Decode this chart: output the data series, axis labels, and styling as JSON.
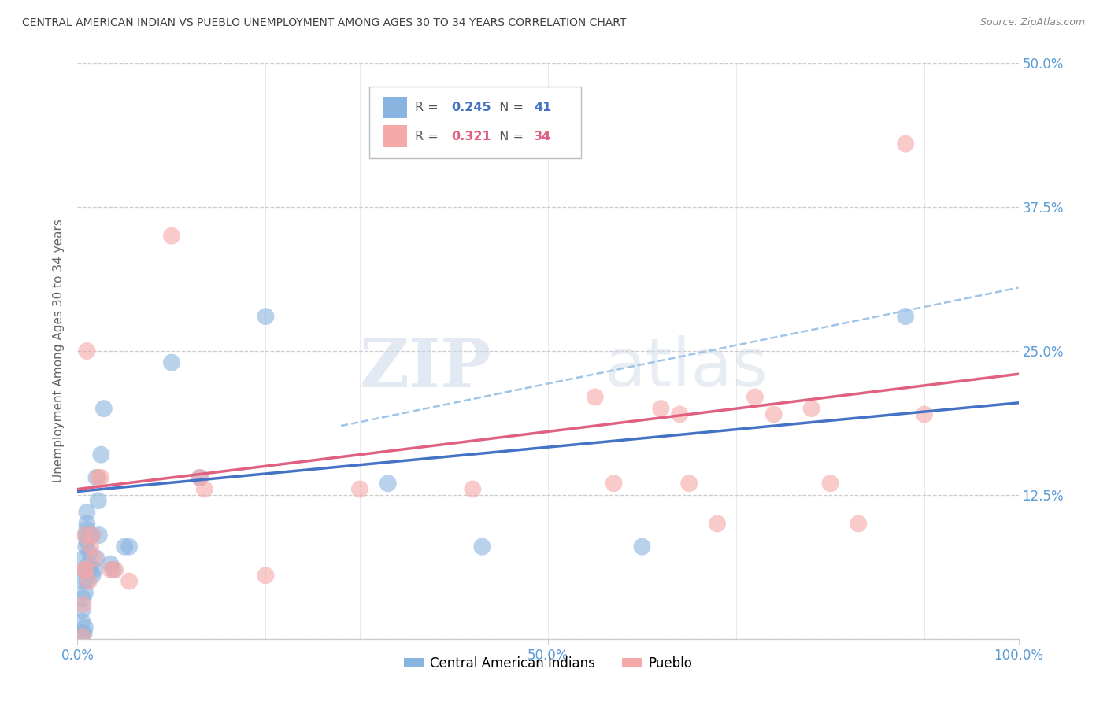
{
  "title": "CENTRAL AMERICAN INDIAN VS PUEBLO UNEMPLOYMENT AMONG AGES 30 TO 34 YEARS CORRELATION CHART",
  "source": "Source: ZipAtlas.com",
  "ylabel": "Unemployment Among Ages 30 to 34 years",
  "xlim": [
    0,
    1.0
  ],
  "ylim": [
    0,
    0.5
  ],
  "color_blue": "#8ab4e0",
  "color_pink": "#f4a8a8",
  "color_blue_line": "#4472c4",
  "color_pink_line": "#e06080",
  "color_dashed": "#9fc5e8",
  "background_color": "#ffffff",
  "grid_color": "#cccccc",
  "title_color": "#404040",
  "axis_label_color": "#5b9bd5",
  "watermark_zip": "ZIP",
  "watermark_atlas": "atlas",
  "blue_label": "Central American Indians",
  "pink_label": "Pueblo",
  "legend_r1_val": "0.245",
  "legend_n1_val": "41",
  "legend_r2_val": "0.321",
  "legend_n2_val": "34",
  "blue_x": [
    0.005,
    0.005,
    0.005,
    0.006,
    0.006,
    0.007,
    0.007,
    0.007,
    0.008,
    0.008,
    0.009,
    0.009,
    0.01,
    0.01,
    0.01,
    0.01,
    0.01,
    0.01,
    0.012,
    0.013,
    0.014,
    0.015,
    0.016,
    0.018,
    0.02,
    0.02,
    0.022,
    0.023,
    0.025,
    0.028,
    0.035,
    0.038,
    0.05,
    0.055,
    0.1,
    0.13,
    0.2,
    0.33,
    0.43,
    0.6,
    0.88
  ],
  "blue_y": [
    0.005,
    0.015,
    0.025,
    0.035,
    0.05,
    0.06,
    0.07,
    0.005,
    0.04,
    0.01,
    0.08,
    0.09,
    0.085,
    0.095,
    0.1,
    0.11,
    0.06,
    0.05,
    0.065,
    0.075,
    0.06,
    0.09,
    0.055,
    0.06,
    0.14,
    0.07,
    0.12,
    0.09,
    0.16,
    0.2,
    0.065,
    0.06,
    0.08,
    0.08,
    0.24,
    0.14,
    0.28,
    0.135,
    0.08,
    0.08,
    0.28
  ],
  "pink_x": [
    0.005,
    0.006,
    0.007,
    0.008,
    0.009,
    0.01,
    0.012,
    0.014,
    0.016,
    0.018,
    0.022,
    0.025,
    0.035,
    0.04,
    0.055,
    0.1,
    0.13,
    0.135,
    0.2,
    0.3,
    0.42,
    0.55,
    0.57,
    0.62,
    0.64,
    0.65,
    0.68,
    0.72,
    0.74,
    0.78,
    0.8,
    0.83,
    0.88,
    0.9
  ],
  "pink_y": [
    0.002,
    0.03,
    0.06,
    0.09,
    0.06,
    0.25,
    0.05,
    0.08,
    0.09,
    0.07,
    0.14,
    0.14,
    0.06,
    0.06,
    0.05,
    0.35,
    0.14,
    0.13,
    0.055,
    0.13,
    0.13,
    0.21,
    0.135,
    0.2,
    0.195,
    0.135,
    0.1,
    0.21,
    0.195,
    0.2,
    0.135,
    0.1,
    0.43,
    0.195
  ],
  "blue_line_x0": 0.0,
  "blue_line_x1": 1.0,
  "blue_line_y0": 0.128,
  "blue_line_y1": 0.205,
  "pink_line_x0": 0.0,
  "pink_line_x1": 1.0,
  "pink_line_y0": 0.13,
  "pink_line_y1": 0.23,
  "dashed_line_x0": 0.28,
  "dashed_line_x1": 1.0,
  "dashed_line_y0": 0.185,
  "dashed_line_y1": 0.305
}
